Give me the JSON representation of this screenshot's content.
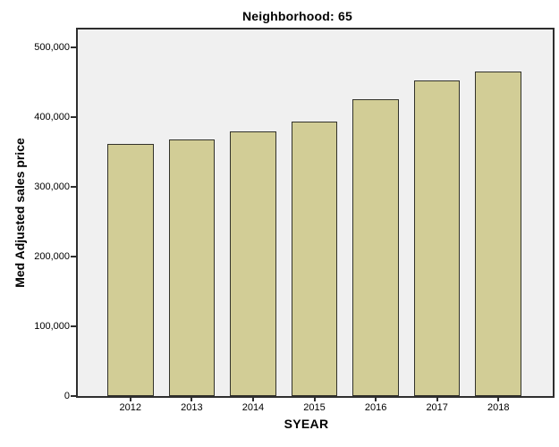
{
  "chart_data": {
    "type": "bar",
    "title": "Neighborhood: 65",
    "xlabel": "SYEAR",
    "ylabel": "Med Adjusted sales price",
    "categories": [
      "2012",
      "2013",
      "2014",
      "2015",
      "2016",
      "2017",
      "2018"
    ],
    "values": [
      361000,
      368000,
      380000,
      394000,
      426000,
      452000,
      466000
    ],
    "yticks": [
      0,
      100000,
      200000,
      300000,
      400000,
      500000
    ],
    "ytick_labels": [
      "0",
      "100,000",
      "200,000",
      "300,000",
      "400,000",
      "500,000"
    ],
    "ylim": [
      0,
      525000
    ],
    "grid": false,
    "legend": false,
    "colors": {
      "bar_fill": "#d2cd96",
      "bar_border": "#32322a",
      "plot_background": "#f0f0f0",
      "frame": "#2e2e2e",
      "text": "#000000"
    }
  }
}
